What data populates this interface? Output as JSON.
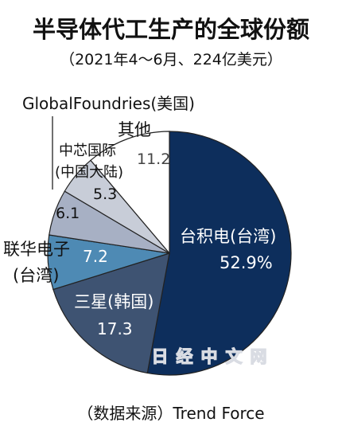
{
  "chart_data": {
    "type": "pie",
    "title": "半导体代工生产的全球份额",
    "subtitle": "（2021年4～6月、224亿美元）",
    "source": "（数据来源）Trend Force",
    "watermark": "日经中文网",
    "slices": [
      {
        "name": "台积电(台湾)",
        "value": 52.9,
        "label": "52.9%",
        "color": "#0d2e5c"
      },
      {
        "name": "三星(韩国)",
        "value": 17.3,
        "label": "17.3",
        "color": "#3e5372"
      },
      {
        "name": "联华电子(台湾)",
        "value": 7.2,
        "label": "7.2",
        "color": "#4e8ab4"
      },
      {
        "name": "GlobalFoundries(美国)",
        "value": 6.1,
        "label": "6.1",
        "color": "#a7b0c4"
      },
      {
        "name": "中芯国际(中国大陆)",
        "value": 5.3,
        "label": "5.3",
        "color": "#c8cdd8"
      },
      {
        "name": "其他",
        "value": 11.2,
        "label": "11.2",
        "color": "#ffffff"
      }
    ],
    "stroke_color": "#222222"
  }
}
